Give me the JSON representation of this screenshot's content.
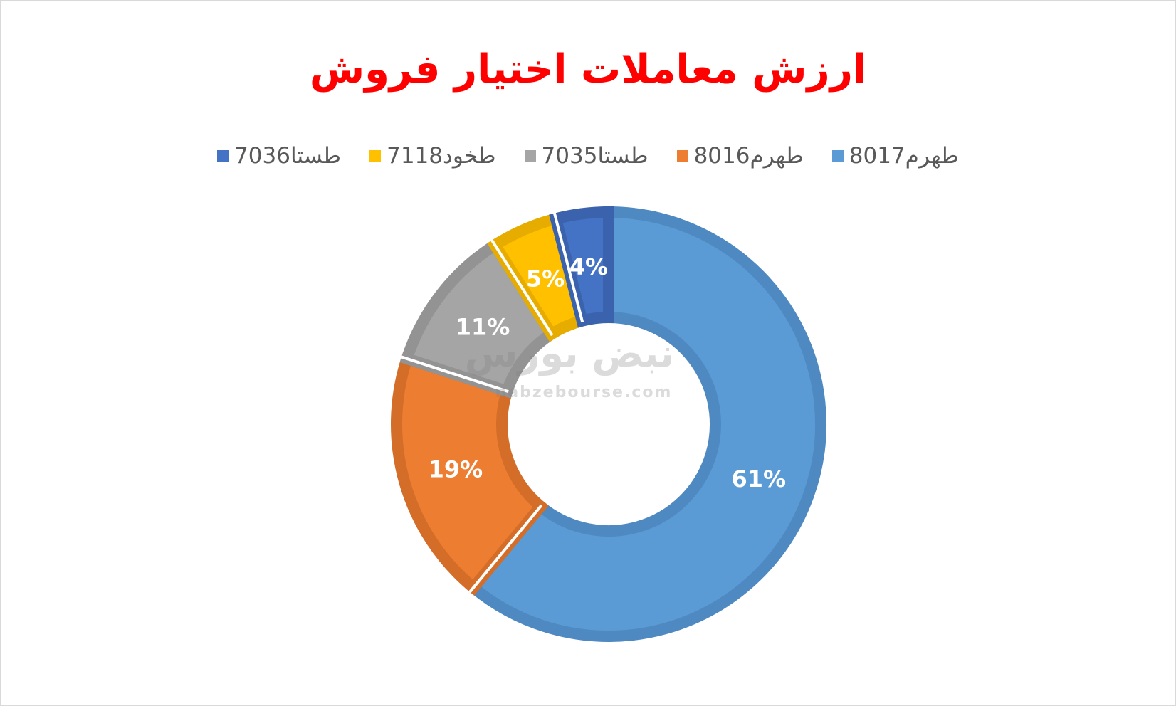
{
  "chart_data": {
    "type": "donut",
    "title": "ارزش معاملات اختیار فروش",
    "categories": [
      "طهرم8017",
      "طهرم8016",
      "طستا7035",
      "طخود7118",
      "طستا7036"
    ],
    "values": [
      61,
      19,
      11,
      5,
      4
    ],
    "data_labels": [
      "61%",
      "19%",
      "11%",
      "5%",
      "4%"
    ],
    "colors": [
      "#5b9bd5",
      "#ed7d31",
      "#a5a5a5",
      "#ffc000",
      "#4472c4"
    ],
    "border_colors": [
      "#4f89c2",
      "#d46d28",
      "#939393",
      "#e6ac00",
      "#3b63ad"
    ],
    "legend_position": "top",
    "legend_order": [
      4,
      3,
      2,
      1,
      0
    ],
    "start_angle_deg": 0,
    "direction": "clockwise"
  },
  "watermark": {
    "logo_text": "نبض بورس",
    "url_text": "nabzebourse.com"
  }
}
